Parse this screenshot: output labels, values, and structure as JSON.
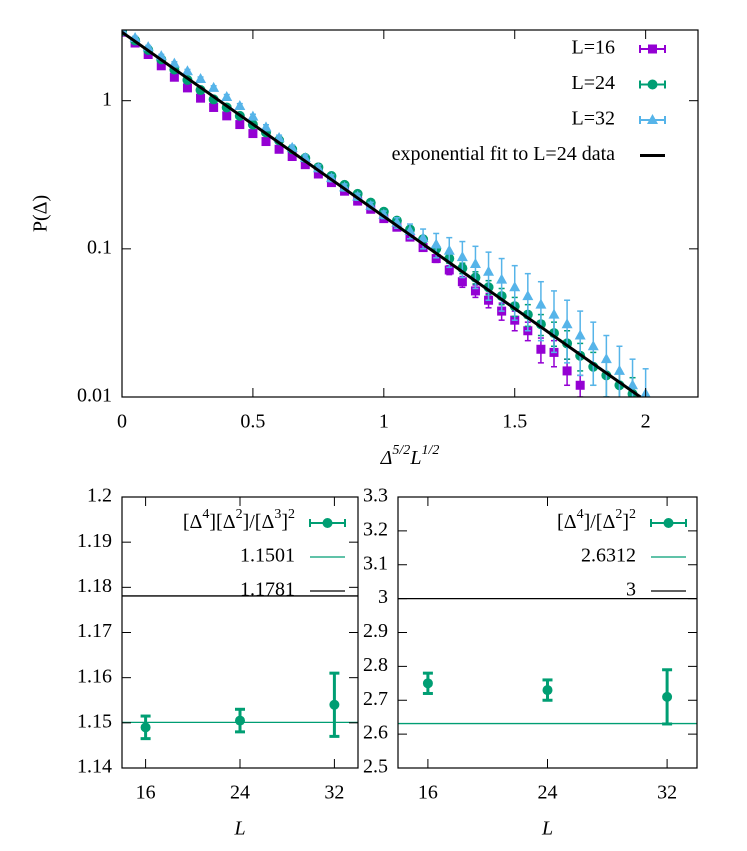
{
  "chart_data": [
    {
      "type": "scatter",
      "x_label": [
        "Δ",
        "5/2",
        "L",
        "1/2"
      ],
      "y_label": "P(Δ)",
      "log_y": true,
      "xlim": [
        0,
        2.2
      ],
      "xticks": [
        0,
        0.5,
        1,
        1.5,
        2
      ],
      "ylim": [
        0.01,
        3
      ],
      "yticks": [
        0.01,
        0.1,
        1
      ],
      "series": [
        {
          "name": "L=16",
          "color": "#9400d3",
          "marker": "square",
          "x": [
            0,
            0.05,
            0.1,
            0.15,
            0.2,
            0.25,
            0.3,
            0.35,
            0.4,
            0.45,
            0.5,
            0.55,
            0.6,
            0.65,
            0.7,
            0.75,
            0.8,
            0.85,
            0.9,
            0.95,
            1,
            1.05,
            1.1,
            1.15,
            1.2,
            1.25,
            1.3,
            1.35,
            1.4,
            1.45,
            1.5,
            1.55,
            1.6,
            1.65,
            1.7,
            1.75
          ],
          "values": [
            2.9,
            2.45,
            2.05,
            1.72,
            1.44,
            1.22,
            1.04,
            0.9,
            0.79,
            0.69,
            0.6,
            0.53,
            0.47,
            0.42,
            0.37,
            0.32,
            0.28,
            0.245,
            0.21,
            0.185,
            0.16,
            0.14,
            0.12,
            0.102,
            0.086,
            0.072,
            0.06,
            0.052,
            0.045,
            0.038,
            0.033,
            0.028,
            0.021,
            0.02,
            0.015,
            0.012
          ],
          "errors": [
            0.06,
            0.05,
            0.04,
            0.035,
            0.03,
            0.025,
            0.02,
            0.018,
            0.016,
            0.014,
            0.012,
            0.011,
            0.01,
            0.009,
            0.008,
            0.007,
            0.007,
            0.006,
            0.006,
            0.005,
            0.005,
            0.005,
            0.005,
            0.005,
            0.005,
            0.005,
            0.005,
            0.005,
            0.005,
            0.005,
            0.005,
            0.004,
            0.004,
            0.004,
            0.003,
            0.002
          ]
        },
        {
          "name": "L=24",
          "color": "#009e73",
          "marker": "circle",
          "x": [
            0,
            0.05,
            0.1,
            0.15,
            0.2,
            0.25,
            0.3,
            0.35,
            0.4,
            0.45,
            0.5,
            0.55,
            0.6,
            0.65,
            0.7,
            0.75,
            0.8,
            0.85,
            0.9,
            0.95,
            1,
            1.05,
            1.1,
            1.15,
            1.2,
            1.25,
            1.3,
            1.35,
            1.4,
            1.45,
            1.5,
            1.55,
            1.6,
            1.65,
            1.7,
            1.75,
            1.8,
            1.85,
            1.9,
            1.95
          ],
          "values": [
            2.95,
            2.55,
            2.2,
            1.9,
            1.62,
            1.38,
            1.18,
            1.02,
            0.9,
            0.79,
            0.69,
            0.61,
            0.54,
            0.47,
            0.41,
            0.355,
            0.31,
            0.27,
            0.235,
            0.205,
            0.178,
            0.155,
            0.135,
            0.116,
            0.1,
            0.086,
            0.074,
            0.064,
            0.055,
            0.048,
            0.041,
            0.036,
            0.031,
            0.027,
            0.023,
            0.019,
            0.016,
            0.014,
            0.012,
            0.0105
          ],
          "errors": [
            0.05,
            0.045,
            0.04,
            0.035,
            0.03,
            0.028,
            0.025,
            0.022,
            0.02,
            0.018,
            0.016,
            0.015,
            0.014,
            0.013,
            0.012,
            0.011,
            0.01,
            0.009,
            0.008,
            0.008,
            0.007,
            0.007,
            0.006,
            0.006,
            0.006,
            0.006,
            0.006,
            0.006,
            0.006,
            0.006,
            0.006,
            0.006,
            0.005,
            0.005,
            0.005,
            0.004,
            0.004,
            0.004,
            0.003,
            0.003
          ]
        },
        {
          "name": "L=32",
          "color": "#56b4e9",
          "marker": "triangle",
          "x": [
            0,
            0.05,
            0.1,
            0.15,
            0.2,
            0.25,
            0.3,
            0.35,
            0.4,
            0.45,
            0.5,
            0.55,
            0.6,
            0.65,
            0.7,
            0.75,
            0.8,
            0.85,
            0.9,
            0.95,
            1,
            1.05,
            1.1,
            1.15,
            1.2,
            1.25,
            1.3,
            1.35,
            1.4,
            1.45,
            1.5,
            1.55,
            1.6,
            1.65,
            1.7,
            1.75,
            1.8,
            1.85,
            1.9,
            1.95,
            2
          ],
          "values": [
            3.0,
            2.65,
            2.3,
            2.0,
            1.78,
            1.58,
            1.4,
            1.22,
            1.06,
            0.92,
            0.78,
            0.66,
            0.56,
            0.48,
            0.41,
            0.35,
            0.3,
            0.26,
            0.225,
            0.195,
            0.17,
            0.15,
            0.132,
            0.118,
            0.107,
            0.097,
            0.088,
            0.079,
            0.07,
            0.062,
            0.055,
            0.048,
            0.042,
            0.036,
            0.031,
            0.026,
            0.022,
            0.018,
            0.015,
            0.012,
            0.0105
          ],
          "errors": [
            0.08,
            0.07,
            0.06,
            0.055,
            0.05,
            0.045,
            0.045,
            0.04,
            0.04,
            0.035,
            0.03,
            0.028,
            0.025,
            0.022,
            0.02,
            0.018,
            0.016,
            0.014,
            0.012,
            0.011,
            0.01,
            0.012,
            0.015,
            0.018,
            0.02,
            0.022,
            0.024,
            0.025,
            0.025,
            0.024,
            0.022,
            0.02,
            0.018,
            0.016,
            0.014,
            0.012,
            0.01,
            0.008,
            0.007,
            0.006,
            0.005
          ]
        },
        {
          "name": "exponential fit to L=24 data",
          "color": "#000000",
          "style": "line",
          "x": [
            0,
            1.98
          ],
          "values": [
            2.9,
            0.01
          ]
        }
      ]
    },
    {
      "type": "scatter",
      "x_label": "L",
      "xlim": [
        14,
        34
      ],
      "xticks": [
        16,
        24,
        32
      ],
      "ylim": [
        1.14,
        1.2
      ],
      "yticks": [
        1.14,
        1.15,
        1.16,
        1.17,
        1.18,
        1.19,
        1.2
      ],
      "series": [
        {
          "name": [
            "[Δ",
            "4",
            "][Δ",
            "2",
            "]/[Δ",
            "3",
            "]",
            "2"
          ],
          "color": "#009e73",
          "marker": "circle",
          "x": [
            16,
            24,
            32
          ],
          "values": [
            1.149,
            1.1505,
            1.154
          ],
          "errors": [
            0.0025,
            0.0025,
            0.007
          ]
        },
        {
          "style": "hline",
          "color": "#009e73",
          "value": 1.1501
        },
        {
          "style": "hline",
          "color": "#000000",
          "value": 1.1781
        }
      ]
    },
    {
      "type": "scatter",
      "x_label": "L",
      "xlim": [
        14,
        34
      ],
      "xticks": [
        16,
        24,
        32
      ],
      "ylim": [
        2.5,
        3.3
      ],
      "yticks": [
        2.5,
        2.6,
        2.7,
        2.8,
        2.9,
        3,
        3.1,
        3.2,
        3.3
      ],
      "series": [
        {
          "name": [
            "[Δ",
            "4",
            "]/[Δ",
            "2",
            "]",
            "2"
          ],
          "color": "#009e73",
          "marker": "circle",
          "x": [
            16,
            24,
            32
          ],
          "values": [
            2.75,
            2.73,
            2.71
          ],
          "errors": [
            0.03,
            0.03,
            0.08
          ]
        },
        {
          "style": "hline",
          "color": "#009e73",
          "value": 2.6312
        },
        {
          "style": "hline",
          "color": "#000000",
          "value": 3
        }
      ]
    }
  ]
}
